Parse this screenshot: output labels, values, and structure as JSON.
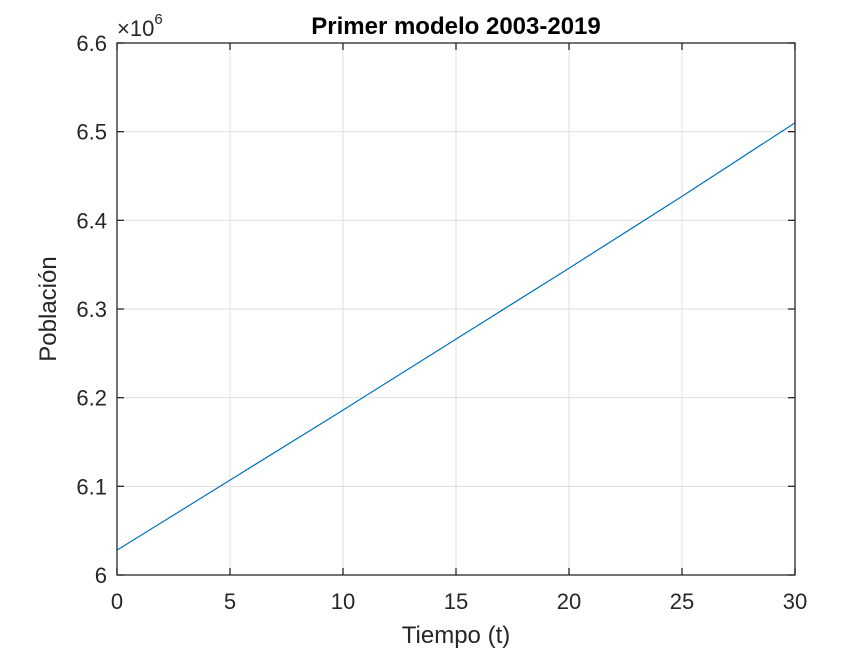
{
  "chart_data": {
    "type": "line",
    "title": "Primer modelo 2003-2019",
    "xlabel": "Tiempo (t)",
    "ylabel": "Población",
    "xlim": [
      0,
      30
    ],
    "ylim": [
      6000000,
      6600000
    ],
    "xticks": [
      0,
      5,
      10,
      15,
      20,
      25,
      30
    ],
    "yticks": [
      6000000,
      6100000,
      6200000,
      6300000,
      6400000,
      6500000,
      6600000
    ],
    "xtick_labels": [
      "0",
      "5",
      "10",
      "15",
      "20",
      "25",
      "30"
    ],
    "ytick_labels": [
      "6",
      "6.1",
      "6.2",
      "6.3",
      "6.4",
      "6.5",
      "6.6"
    ],
    "y_exponent_base": "×10",
    "y_exponent_power": "6",
    "grid": true,
    "series": [
      {
        "color": "#0072bd",
        "x": [
          0,
          5,
          10,
          15,
          20,
          25,
          30
        ],
        "y": [
          6028000,
          6107000,
          6186000,
          6266000,
          6346000,
          6427000,
          6510000
        ]
      }
    ]
  }
}
